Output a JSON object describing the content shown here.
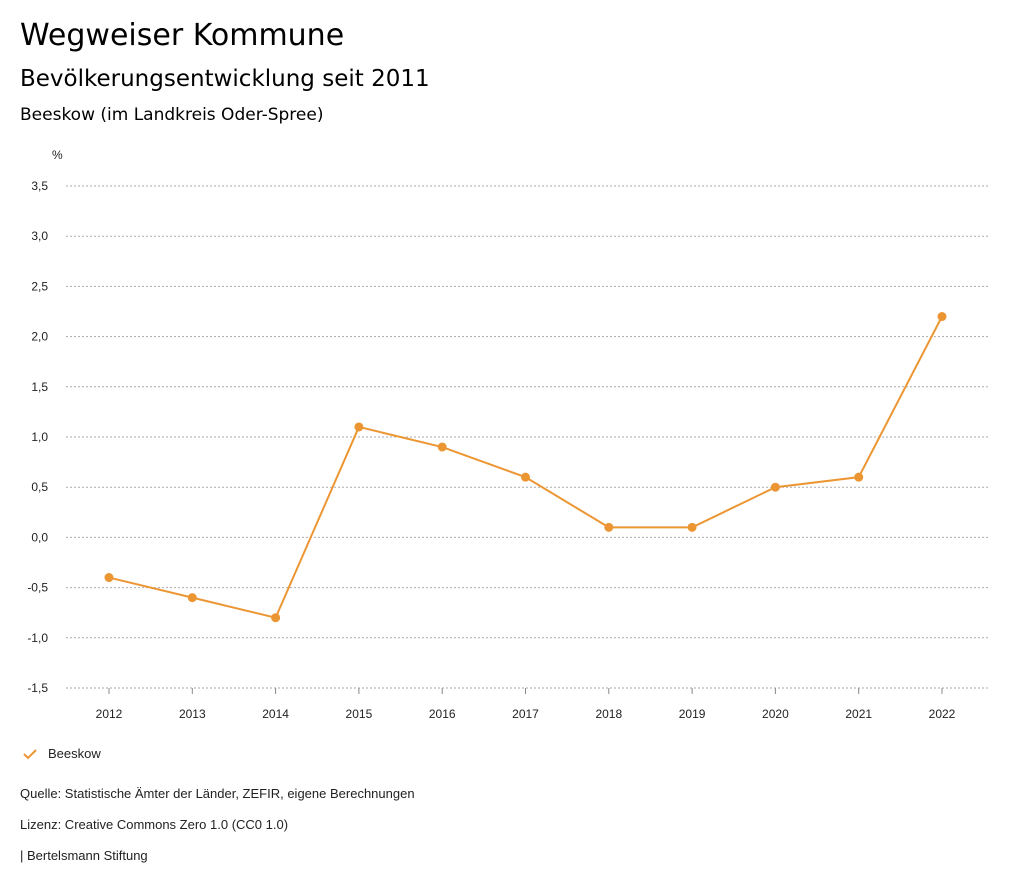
{
  "header": {
    "title": "Wegweiser Kommune",
    "subtitle": "Bevölkerungsentwicklung seit 2011",
    "region": "Beeskow (im Landkreis Oder-Spree)"
  },
  "chart_data": {
    "type": "line",
    "ylabel": "%",
    "ylim": [
      -1.5,
      3.5
    ],
    "yticks": [
      "-1,5",
      "-1,0",
      "-0,5",
      "0,0",
      "0,5",
      "1,0",
      "1,5",
      "2,0",
      "2,5",
      "3,0",
      "3,5"
    ],
    "x": [
      "2012",
      "2013",
      "2014",
      "2015",
      "2016",
      "2017",
      "2018",
      "2019",
      "2020",
      "2021",
      "2022"
    ],
    "series": [
      {
        "name": "Beeskow",
        "color": "#ec9633",
        "values": [
          -0.4,
          -0.6,
          -0.8,
          1.1,
          0.9,
          0.6,
          0.1,
          0.1,
          0.5,
          0.6,
          2.2
        ]
      }
    ],
    "grid": true,
    "legend": "bottom-left"
  },
  "footer": {
    "source": "Quelle: Statistische Ämter der Länder, ZEFIR, eigene Berechnungen",
    "license": "Lizenz: Creative Commons Zero 1.0 (CC0 1.0)",
    "publisher": "| Bertelsmann Stiftung"
  }
}
